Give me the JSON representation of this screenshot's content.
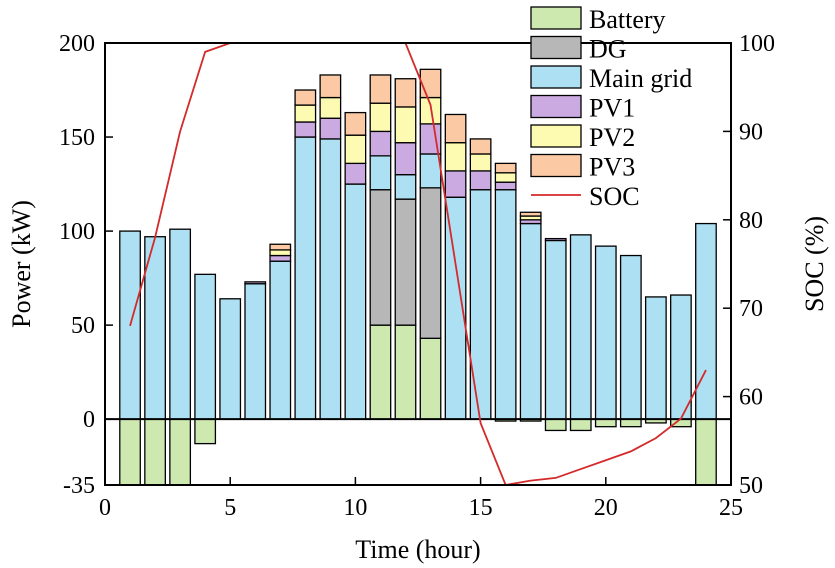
{
  "chart_data": {
    "type": "bar",
    "xlabel": "Time (hour)",
    "ylabel": "Power (kW)",
    "y2label": "SOC (%)",
    "xlim": [
      0,
      25
    ],
    "ylim": [
      -35,
      200
    ],
    "y2lim": [
      50,
      100
    ],
    "xticks": [
      "0",
      "5",
      "10",
      "15",
      "20",
      "25"
    ],
    "yticks": [
      "-35",
      "0",
      "50",
      "100",
      "150",
      "200"
    ],
    "y2ticks": [
      "50",
      "60",
      "70",
      "80",
      "90",
      "100"
    ],
    "legend_position": "top-right",
    "x": [
      1,
      2,
      3,
      4,
      5,
      6,
      7,
      8,
      9,
      10,
      11,
      12,
      13,
      14,
      15,
      16,
      17,
      18,
      19,
      20,
      21,
      22,
      23,
      24
    ],
    "series": [
      {
        "name": "Battery",
        "color": "#cde9b0",
        "values": [
          -35,
          -35,
          -35,
          -13,
          0,
          0,
          0,
          0,
          0,
          0,
          50,
          50,
          43,
          0,
          0,
          -1,
          -1,
          -6,
          -6,
          -4,
          -4,
          -2,
          -4,
          -35
        ]
      },
      {
        "name": "DG",
        "color": "#b7b7b7",
        "values": [
          0,
          0,
          0,
          0,
          0,
          0,
          0,
          0,
          0,
          0,
          72,
          67,
          80,
          0,
          0,
          0,
          0,
          0,
          0,
          0,
          0,
          0,
          0,
          0
        ]
      },
      {
        "name": "Main grid",
        "color": "#aee0f4",
        "values": [
          100,
          97,
          101,
          77,
          64,
          72,
          84,
          150,
          149,
          125,
          18,
          13,
          18,
          118,
          122,
          122,
          104,
          95,
          98,
          92,
          87,
          65,
          66,
          104
        ]
      },
      {
        "name": "PV1",
        "color": "#caaae0",
        "values": [
          0,
          0,
          0,
          0,
          0,
          1,
          3,
          8,
          11,
          11,
          13,
          17,
          16,
          14,
          10,
          4,
          2,
          1,
          0,
          0,
          0,
          0,
          0,
          0
        ]
      },
      {
        "name": "PV2",
        "color": "#fdfbb2",
        "values": [
          0,
          0,
          0,
          0,
          0,
          0,
          3,
          9,
          11,
          15,
          15,
          19,
          14,
          15,
          9,
          5,
          2,
          0,
          0,
          0,
          0,
          0,
          0,
          0
        ]
      },
      {
        "name": "PV3",
        "color": "#fbcaa5",
        "values": [
          0,
          0,
          0,
          0,
          0,
          0,
          3,
          8,
          12,
          12,
          15,
          15,
          15,
          15,
          8,
          5,
          2,
          0,
          0,
          0,
          0,
          0,
          0,
          0
        ]
      },
      {
        "name": "SOC",
        "color": "#d42a2a",
        "axis": "right",
        "type": "line",
        "x": [
          1,
          2,
          3,
          4,
          5,
          6,
          7,
          8,
          9,
          10,
          11,
          12,
          13,
          14,
          15,
          16,
          17,
          18,
          19,
          20,
          21,
          22,
          23,
          24
        ],
        "values": [
          68,
          78,
          90,
          99,
          100,
          100,
          100,
          100,
          100,
          100,
          100,
          100,
          93,
          75,
          57,
          50,
          50.5,
          50.8,
          51.8,
          52.8,
          53.8,
          55.3,
          57.5,
          63
        ]
      }
    ]
  }
}
